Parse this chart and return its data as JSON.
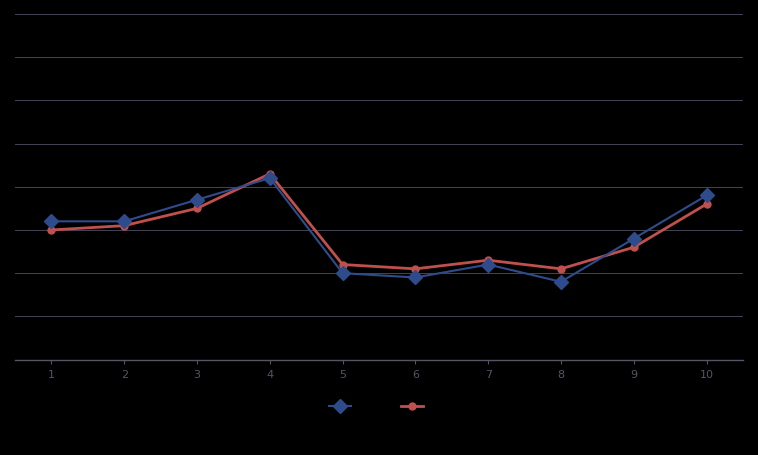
{
  "x": [
    1,
    2,
    3,
    4,
    5,
    6,
    7,
    8,
    9,
    10
  ],
  "blue_line": [
    0.32,
    0.32,
    0.37,
    0.42,
    0.2,
    0.19,
    0.22,
    0.18,
    0.28,
    0.38
  ],
  "red_line": [
    0.3,
    0.31,
    0.35,
    0.43,
    0.22,
    0.21,
    0.23,
    0.21,
    0.26,
    0.36
  ],
  "blue_color": "#2E4C8C",
  "red_color": "#C0504D",
  "background_color": "#000000",
  "plot_bg_color": "#000000",
  "grid_color": "#444455",
  "axis_color": "#555566",
  "ylim": [
    0.0,
    0.8
  ],
  "legend_label_blue": "",
  "legend_label_red": ""
}
